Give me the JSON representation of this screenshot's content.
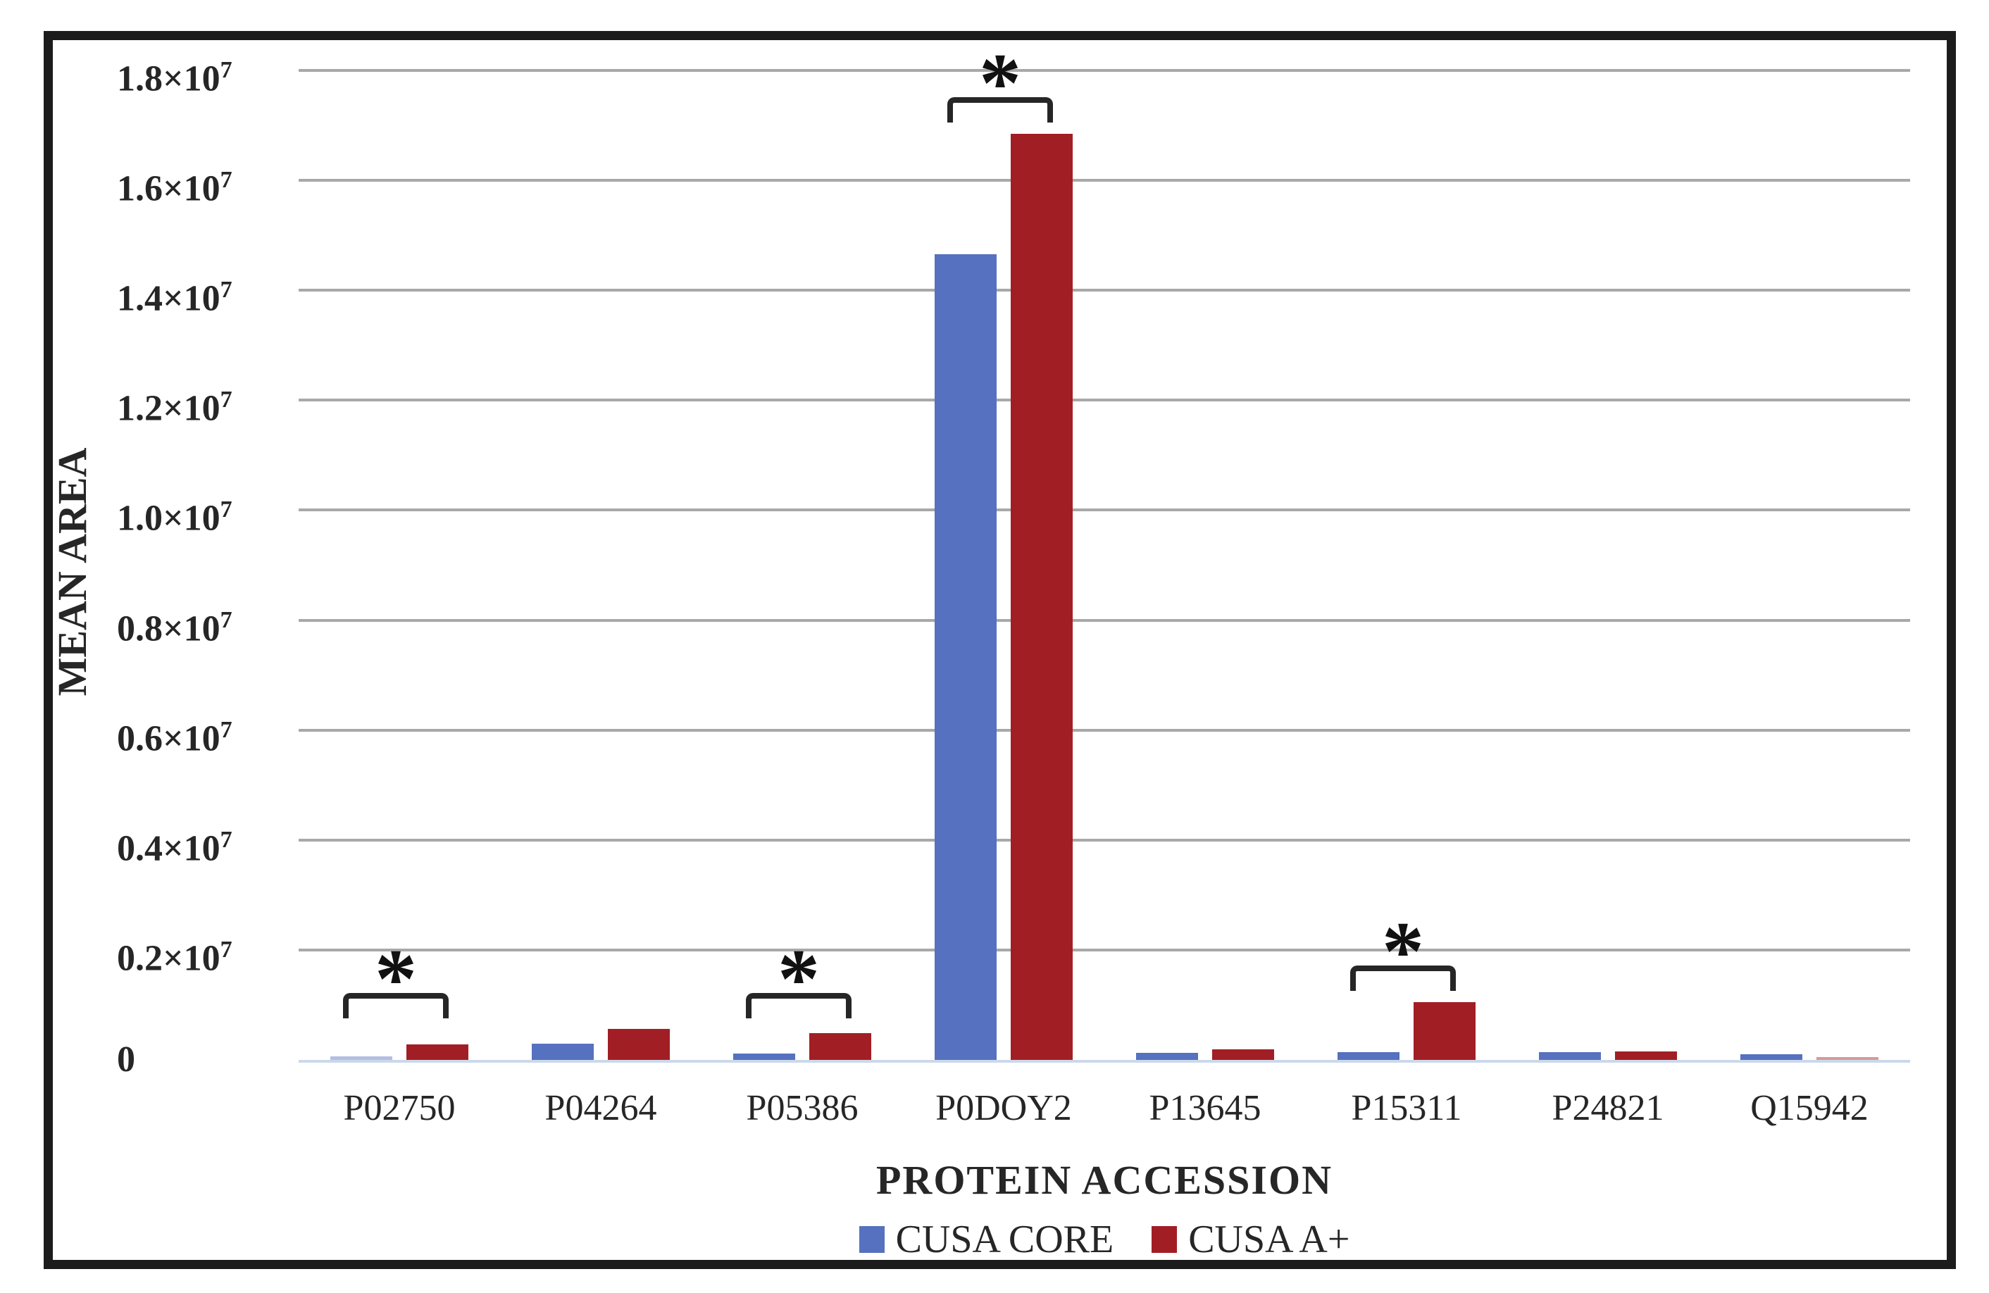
{
  "figure": {
    "frame_color": "#1c1c1c",
    "background_color": "#ffffff",
    "text_color": "#262626"
  },
  "chart_data": {
    "type": "bar",
    "title": "",
    "xlabel": "PROTEIN ACCESSION",
    "ylabel": "MEAN AREA",
    "categories": [
      "P02750",
      "P04264",
      "P05386",
      "P0DOY2",
      "P13645",
      "P15311",
      "P24821",
      "Q15942"
    ],
    "series": [
      {
        "name": "CUSA CORE",
        "color": "#5571bf",
        "values": [
          70000,
          300000,
          120000,
          14650000,
          130000,
          140000,
          140000,
          100000
        ]
      },
      {
        "name": "CUSA A+",
        "color": "#a21e25",
        "values": [
          280000,
          560000,
          490000,
          16850000,
          190000,
          1050000,
          150000,
          50000
        ]
      }
    ],
    "ylim": [
      0,
      18000000
    ],
    "ytick_labels": [
      "0",
      "0.2×10⁷",
      "0.4×10⁷",
      "0.6×10⁷",
      "0.8×10⁷",
      "1.0×10⁷",
      "1.2×10⁷",
      "1.4×10⁷",
      "1.6×10⁷",
      "1.8×10⁷"
    ],
    "grid": true,
    "grid_color": "#a8a8a8",
    "axis_line_color": "#ccd8ea",
    "legend_position": "bottom",
    "significance": [
      {
        "category": "P02750",
        "label": "*"
      },
      {
        "category": "P05386",
        "label": "*"
      },
      {
        "category": "P0DOY2",
        "label": "*"
      },
      {
        "category": "P15311",
        "label": "*"
      }
    ]
  }
}
